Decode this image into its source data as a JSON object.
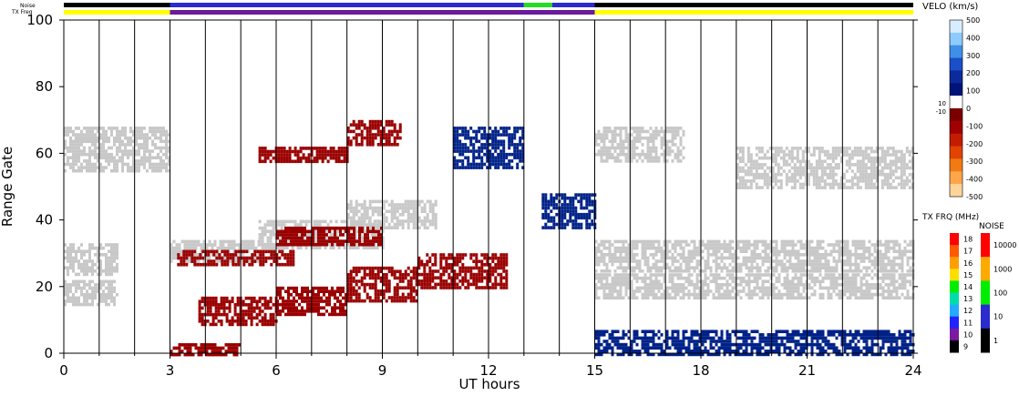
{
  "chart_data": {
    "type": "heatmap",
    "xlabel": "UT hours",
    "ylabel": "Range Gate",
    "xlim": [
      0,
      24
    ],
    "ylim": [
      0,
      100
    ],
    "x_ticks": [
      "0",
      "3",
      "6",
      "9",
      "12",
      "15",
      "18",
      "21",
      "24"
    ],
    "y_ticks": [
      "0",
      "20",
      "40",
      "60",
      "80",
      "100"
    ],
    "grid": "vertical lines every hour",
    "status_bars": {
      "noise_label": "Noise",
      "txfreq_label": "TX Freq",
      "noise_segments": [
        {
          "from": 0,
          "to": 3,
          "color": "#000000"
        },
        {
          "from": 3,
          "to": 13,
          "color": "#2a2acf"
        },
        {
          "from": 13,
          "to": 13.8,
          "color": "#22dd22"
        },
        {
          "from": 13.8,
          "to": 15,
          "color": "#2a2acf"
        },
        {
          "from": 15,
          "to": 24,
          "color": "#000000"
        }
      ],
      "txfreq_segments": [
        {
          "from": 0,
          "to": 3,
          "color": "#ffff00"
        },
        {
          "from": 3,
          "to": 15,
          "color": "#6a1a9a"
        },
        {
          "from": 15,
          "to": 24,
          "color": "#ffff00"
        }
      ]
    },
    "velocity_legend": {
      "title": "VELO (km/s)",
      "ticks": [
        "500",
        "400",
        "300",
        "200",
        "100",
        "0",
        "-100",
        "-200",
        "-300",
        "-400",
        "-500"
      ],
      "mid_labels": [
        "10",
        "-10"
      ],
      "colors": [
        "#d8eefe",
        "#8ecbff",
        "#3f8ee8",
        "#1a4fc8",
        "#0c2a9c",
        "#001478",
        "#ffffff",
        "#7a0000",
        "#a00000",
        "#c21d00",
        "#e04400",
        "#f27a14",
        "#ffa64a",
        "#ffd49a"
      ]
    },
    "txfreq_legend": {
      "title": "TX FRQ (MHz)",
      "ticks": [
        "18",
        "17",
        "16",
        "15",
        "14",
        "13",
        "12",
        "11",
        "10",
        "9"
      ],
      "colors": [
        "#ff0000",
        "#ff5a00",
        "#ff9e00",
        "#ffe000",
        "#00ee00",
        "#00ddaa",
        "#22aaff",
        "#2222ff",
        "#7a1aa0",
        "#000000"
      ]
    },
    "noise_legend": {
      "title": "NOISE",
      "ticks": [
        "10000",
        "1000",
        "100",
        "10",
        "1"
      ],
      "colors": [
        "#ff0000",
        "#ffaa00",
        "#00ee00",
        "#2a2acf",
        "#000000"
      ]
    },
    "scatter_bands": [
      {
        "x": [
          0.0,
          3.0
        ],
        "y": [
          55,
          68
        ],
        "color": "#c8c8c8"
      },
      {
        "x": [
          0.0,
          1.5
        ],
        "y": [
          24,
          33
        ],
        "color": "#c8c8c8"
      },
      {
        "x": [
          0.0,
          1.5
        ],
        "y": [
          15,
          22
        ],
        "color": "#c8c8c8"
      },
      {
        "x": [
          3.0,
          5.5
        ],
        "y": [
          28,
          34
        ],
        "color": "#c8c8c8"
      },
      {
        "x": [
          5.5,
          9.0
        ],
        "y": [
          32,
          40
        ],
        "color": "#c8c8c8"
      },
      {
        "x": [
          8.0,
          10.5
        ],
        "y": [
          38,
          46
        ],
        "color": "#c8c8c8"
      },
      {
        "x": [
          15.0,
          17.5
        ],
        "y": [
          58,
          68
        ],
        "color": "#c8c8c8"
      },
      {
        "x": [
          19.0,
          24.0
        ],
        "y": [
          50,
          62
        ],
        "color": "#c8c8c8"
      },
      {
        "x": [
          15.0,
          24.0
        ],
        "y": [
          25,
          34
        ],
        "color": "#c8c8c8"
      },
      {
        "x": [
          15.0,
          24.0
        ],
        "y": [
          17,
          24
        ],
        "color": "#c8c8c8"
      },
      {
        "x": [
          3.8,
          6.0
        ],
        "y": [
          9,
          17
        ],
        "color": "#9a0000"
      },
      {
        "x": [
          6.0,
          8.0
        ],
        "y": [
          12,
          20
        ],
        "color": "#9a0000"
      },
      {
        "x": [
          8.0,
          10.0
        ],
        "y": [
          16,
          26
        ],
        "color": "#9a0000"
      },
      {
        "x": [
          10.0,
          12.5
        ],
        "y": [
          20,
          30
        ],
        "color": "#9a0000"
      },
      {
        "x": [
          3.2,
          6.5
        ],
        "y": [
          27,
          31
        ],
        "color": "#9a0000"
      },
      {
        "x": [
          6.0,
          9.0
        ],
        "y": [
          33,
          38
        ],
        "color": "#9a0000"
      },
      {
        "x": [
          5.5,
          8.0
        ],
        "y": [
          58,
          62
        ],
        "color": "#9a0000"
      },
      {
        "x": [
          8.0,
          9.5
        ],
        "y": [
          63,
          70
        ],
        "color": "#9a0000"
      },
      {
        "x": [
          3.0,
          5.0
        ],
        "y": [
          0,
          3
        ],
        "color": "#9a0000"
      },
      {
        "x": [
          11.0,
          13.0
        ],
        "y": [
          56,
          68
        ],
        "color": "#002288"
      },
      {
        "x": [
          15.0,
          24.0
        ],
        "y": [
          0,
          7
        ],
        "color": "#002288"
      },
      {
        "x": [
          13.5,
          15.0
        ],
        "y": [
          38,
          48
        ],
        "color": "#002288"
      }
    ]
  }
}
